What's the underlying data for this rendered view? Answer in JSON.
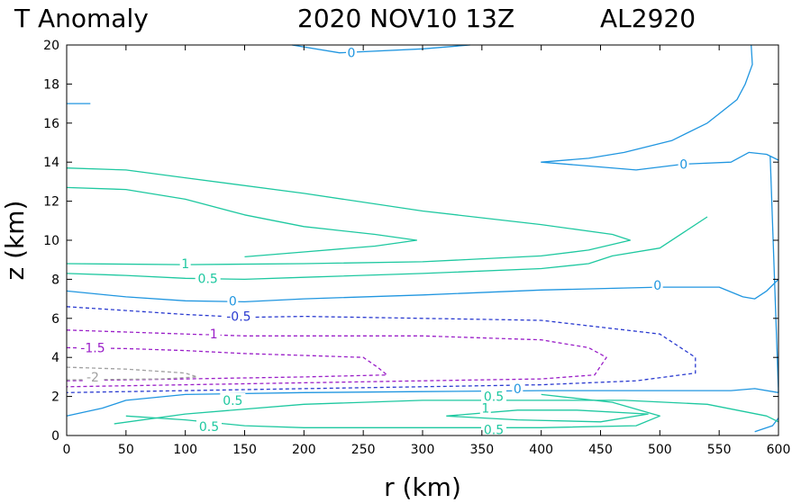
{
  "header": {
    "variable": "T Anomaly",
    "datetime": "2020 NOV10 13Z",
    "storm_id": "AL2920"
  },
  "chart_data": {
    "type": "contour",
    "xlabel": "r (km)",
    "ylabel": "z (km)",
    "xlim": [
      0,
      600
    ],
    "ylim": [
      0,
      20
    ],
    "xticks": [
      0,
      50,
      100,
      150,
      200,
      250,
      300,
      350,
      400,
      450,
      500,
      550,
      600
    ],
    "yticks": [
      0,
      2,
      4,
      6,
      8,
      10,
      12,
      14,
      16,
      18,
      20
    ],
    "xtick_labels": [
      "0",
      "50",
      "100",
      "150",
      "200",
      "250",
      "300",
      "350",
      "400",
      "450",
      "500",
      "550",
      "600"
    ],
    "ytick_labels": [
      "0",
      "2",
      "4",
      "6",
      "8",
      "10",
      "12",
      "14",
      "16",
      "18",
      "20"
    ],
    "grid": false,
    "colors": {
      "pos_1": "#1ec8a0",
      "pos_05": "#1ec8a0",
      "zero": "#2096e0",
      "neg_05": "#2a3ad0",
      "neg_1": "#9a1ec8",
      "neg_2": "#a0a0a0"
    },
    "contours": [
      {
        "level": 0,
        "label": "0",
        "color": "#2096e0",
        "dash": false,
        "points": [
          [
            190,
            20
          ],
          [
            230,
            19.6
          ],
          [
            300,
            19.8
          ],
          [
            340,
            20
          ]
        ],
        "labels": [
          {
            "text": "0",
            "x": 240,
            "y": 19.6
          }
        ]
      },
      {
        "level": 0,
        "label": "",
        "color": "#2096e0",
        "dash": false,
        "points": [
          [
            0,
            17
          ],
          [
            20,
            17
          ]
        ],
        "labels": []
      },
      {
        "level": 0,
        "label": "",
        "color": "#2096e0",
        "dash": false,
        "points": [
          [
            577,
            20
          ],
          [
            578,
            19.0
          ],
          [
            572,
            18.0
          ],
          [
            565,
            17.2
          ],
          [
            540,
            16.0
          ],
          [
            510,
            15.1
          ],
          [
            470,
            14.5
          ],
          [
            440,
            14.2
          ],
          [
            400,
            14.0
          ],
          [
            440,
            13.8
          ],
          [
            480,
            13.6
          ],
          [
            520,
            13.9
          ],
          [
            560,
            14.0
          ],
          [
            575,
            14.5
          ],
          [
            590,
            14.4
          ],
          [
            600,
            14.1
          ]
        ],
        "labels": [
          {
            "text": "0",
            "x": 520,
            "y": 13.9
          }
        ]
      },
      {
        "level": 0,
        "label": "",
        "color": "#2096e0",
        "dash": false,
        "points": [
          [
            0,
            7.4
          ],
          [
            50,
            7.1
          ],
          [
            100,
            6.9
          ],
          [
            150,
            6.85
          ],
          [
            200,
            7.0
          ],
          [
            300,
            7.2
          ],
          [
            400,
            7.45
          ],
          [
            500,
            7.6
          ],
          [
            550,
            7.6
          ],
          [
            570,
            7.1
          ],
          [
            580,
            7.0
          ],
          [
            590,
            7.4
          ],
          [
            600,
            8.0
          ]
        ],
        "labels": [
          {
            "text": "0",
            "x": 140,
            "y": 6.9
          },
          {
            "text": "0",
            "x": 498,
            "y": 7.7
          }
        ]
      },
      {
        "level": 0,
        "label": "",
        "color": "#2096e0",
        "dash": false,
        "points": [
          [
            0,
            1.0
          ],
          [
            30,
            1.4
          ],
          [
            50,
            1.8
          ],
          [
            100,
            2.1
          ],
          [
            200,
            2.2
          ],
          [
            300,
            2.25
          ],
          [
            400,
            2.3
          ],
          [
            500,
            2.3
          ],
          [
            560,
            2.3
          ],
          [
            580,
            2.4
          ],
          [
            600,
            2.2
          ]
        ],
        "labels": [
          {
            "text": "0",
            "x": 380,
            "y": 2.4
          }
        ]
      },
      {
        "level": 0,
        "label": "",
        "color": "#2096e0",
        "dash": false,
        "points": [
          [
            580,
            0.2
          ],
          [
            595,
            0.5
          ],
          [
            600,
            0.9
          ]
        ],
        "labels": []
      },
      {
        "level": 0,
        "label": "",
        "color": "#2096e0",
        "dash": false,
        "points": [
          [
            600,
            2.2
          ],
          [
            593,
            14.3
          ]
        ],
        "labels": []
      },
      {
        "level": 1,
        "label": "",
        "color": "#1ec8a0",
        "dash": false,
        "points": [
          [
            0,
            13.7
          ],
          [
            50,
            13.6
          ],
          [
            100,
            13.2
          ],
          [
            200,
            12.4
          ],
          [
            300,
            11.5
          ],
          [
            400,
            10.8
          ],
          [
            460,
            10.3
          ],
          [
            475,
            10.0
          ],
          [
            440,
            9.5
          ],
          [
            400,
            9.2
          ],
          [
            300,
            8.9
          ],
          [
            200,
            8.8
          ],
          [
            100,
            8.75
          ],
          [
            0,
            8.8
          ]
        ],
        "labels": [
          {
            "text": "1",
            "x": 100,
            "y": 8.8
          }
        ]
      },
      {
        "level": 1,
        "label": "",
        "color": "#1ec8a0",
        "dash": false,
        "points": [
          [
            0,
            12.7
          ],
          [
            50,
            12.6
          ],
          [
            100,
            12.1
          ],
          [
            150,
            11.3
          ],
          [
            200,
            10.7
          ],
          [
            260,
            10.3
          ],
          [
            295,
            10.0
          ],
          [
            260,
            9.7
          ],
          [
            200,
            9.4
          ],
          [
            150,
            9.15
          ]
        ],
        "labels": []
      },
      {
        "level": 0.5,
        "label": "",
        "color": "#1ec8a0",
        "dash": false,
        "points": [
          [
            0,
            8.3
          ],
          [
            50,
            8.2
          ],
          [
            100,
            8.05
          ],
          [
            150,
            8.0
          ],
          [
            200,
            8.1
          ],
          [
            300,
            8.3
          ],
          [
            400,
            8.55
          ],
          [
            440,
            8.8
          ],
          [
            460,
            9.2
          ],
          [
            500,
            9.6
          ],
          [
            520,
            10.4
          ],
          [
            540,
            11.2
          ]
        ],
        "labels": [
          {
            "text": "0.5",
            "x": 119,
            "y": 8.05
          }
        ]
      },
      {
        "level": 0.5,
        "label": "",
        "color": "#1ec8a0",
        "dash": false,
        "points": [
          [
            40,
            0.6
          ],
          [
            100,
            1.1
          ],
          [
            200,
            1.6
          ],
          [
            300,
            1.8
          ],
          [
            400,
            1.8
          ],
          [
            470,
            1.8
          ],
          [
            540,
            1.6
          ],
          [
            590,
            1.0
          ],
          [
            600,
            0.7
          ]
        ],
        "labels": [
          {
            "text": "0.5",
            "x": 140,
            "y": 1.8
          },
          {
            "text": "0.5",
            "x": 360,
            "y": 2.0
          }
        ]
      },
      {
        "level": 1,
        "label": "",
        "color": "#1ec8a0",
        "dash": false,
        "points": [
          [
            320,
            1.0
          ],
          [
            380,
            1.3
          ],
          [
            430,
            1.3
          ],
          [
            490,
            1.1
          ],
          [
            450,
            0.7
          ],
          [
            380,
            0.8
          ],
          [
            320,
            1.0
          ]
        ],
        "labels": [
          {
            "text": "1",
            "x": 353,
            "y": 1.4
          }
        ]
      },
      {
        "level": 0.5,
        "label": "",
        "color": "#1ec8a0",
        "dash": false,
        "points": [
          [
            50,
            1.0
          ],
          [
            100,
            0.8
          ],
          [
            150,
            0.5
          ],
          [
            200,
            0.4
          ],
          [
            300,
            0.4
          ],
          [
            400,
            0.4
          ],
          [
            480,
            0.5
          ],
          [
            500,
            1.0
          ],
          [
            460,
            1.7
          ],
          [
            400,
            2.1
          ]
        ],
        "labels": [
          {
            "text": "0.5",
            "x": 120,
            "y": 0.45
          },
          {
            "text": "0.5",
            "x": 360,
            "y": 0.3
          }
        ]
      },
      {
        "level": -0.5,
        "label": "",
        "color": "#2a3ad0",
        "dash": true,
        "points": [
          [
            0,
            6.6
          ],
          [
            50,
            6.4
          ],
          [
            100,
            6.2
          ],
          [
            150,
            6.05
          ],
          [
            200,
            6.1
          ],
          [
            300,
            6.0
          ],
          [
            400,
            5.9
          ],
          [
            500,
            5.2
          ],
          [
            530,
            4.0
          ],
          [
            530,
            3.2
          ],
          [
            480,
            2.8
          ],
          [
            400,
            2.6
          ],
          [
            300,
            2.5
          ],
          [
            200,
            2.4
          ],
          [
            100,
            2.3
          ],
          [
            0,
            2.2
          ]
        ],
        "labels": [
          {
            "text": "-0.5",
            "x": 145,
            "y": 6.1
          }
        ]
      },
      {
        "level": -1,
        "label": "",
        "color": "#9a1ec8",
        "dash": true,
        "points": [
          [
            0,
            5.4
          ],
          [
            50,
            5.3
          ],
          [
            100,
            5.2
          ],
          [
            150,
            5.1
          ],
          [
            200,
            5.1
          ],
          [
            300,
            5.1
          ],
          [
            400,
            4.9
          ],
          [
            440,
            4.5
          ],
          [
            455,
            4.0
          ],
          [
            445,
            3.1
          ],
          [
            400,
            2.9
          ],
          [
            300,
            2.8
          ],
          [
            200,
            2.7
          ],
          [
            100,
            2.6
          ],
          [
            0,
            2.5
          ]
        ],
        "labels": [
          {
            "text": "-1",
            "x": 122,
            "y": 5.2
          }
        ]
      },
      {
        "level": -1.5,
        "label": "",
        "color": "#9a1ec8",
        "dash": true,
        "points": [
          [
            0,
            4.5
          ],
          [
            50,
            4.45
          ],
          [
            100,
            4.35
          ],
          [
            150,
            4.2
          ],
          [
            200,
            4.1
          ],
          [
            250,
            4.0
          ],
          [
            262,
            3.5
          ],
          [
            270,
            3.1
          ],
          [
            200,
            3.0
          ],
          [
            100,
            2.9
          ],
          [
            0,
            2.8
          ]
        ],
        "labels": [
          {
            "text": "-1.5",
            "x": 22,
            "y": 4.5
          }
        ]
      },
      {
        "level": -2,
        "label": "",
        "color": "#a0a0a0",
        "dash": true,
        "points": [
          [
            0,
            3.5
          ],
          [
            50,
            3.4
          ],
          [
            100,
            3.2
          ],
          [
            110,
            3.0
          ],
          [
            80,
            2.9
          ],
          [
            0,
            2.85
          ]
        ],
        "labels": [
          {
            "text": "-2",
            "x": 22,
            "y": 3.0
          }
        ]
      }
    ]
  }
}
